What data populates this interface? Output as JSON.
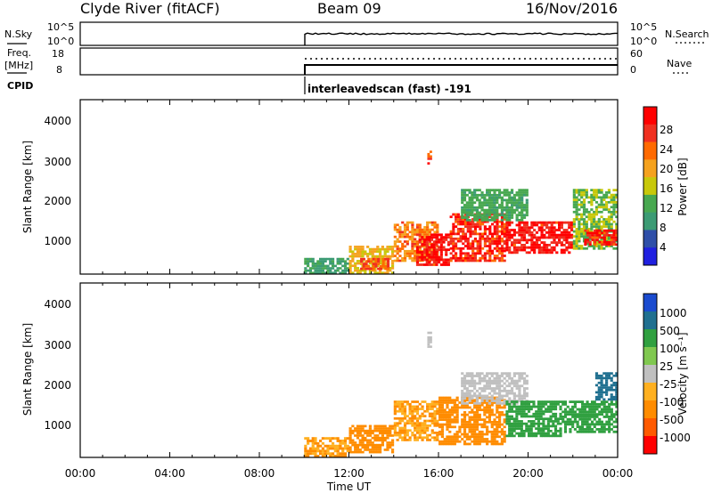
{
  "header": {
    "station": "Clyde River (fitACF)",
    "beam": "Beam 09",
    "date": "16/Nov/2016"
  },
  "colors": {
    "frame": "#000000",
    "power_scale": [
      "#2020e0",
      "#2f4fa8",
      "#3c9b74",
      "#48a850",
      "#c8c80a",
      "#f5a21e",
      "#ff6a00",
      "#f03020",
      "#ff0000"
    ],
    "velocity_scale": [
      "#ff0000",
      "#ff5a00",
      "#ff8c00",
      "#ffb020",
      "#c0c0c0",
      "#80c850",
      "#30a040",
      "#207090",
      "#1a4bcf"
    ]
  },
  "panels": {
    "nsky": {
      "label": "N.Sky",
      "left_ticks": [
        "10^5",
        "10^0"
      ],
      "right_ticks": [
        "10^5",
        "10^0"
      ],
      "right_label": "N.Search"
    },
    "freq": {
      "label_line1": "Freq.",
      "label_line2": "[MHz]",
      "left_ticks": [
        "18",
        "8"
      ],
      "right_ticks": [
        "60",
        "0"
      ],
      "right_label": "Nave"
    },
    "cpid": {
      "label": "CPID",
      "text": "interleavedscan (fast) -191"
    }
  },
  "chart_data": [
    {
      "type": "heatmap",
      "title": "",
      "ylabel": "Slant Range [km]",
      "xlabel": "",
      "xlim": [
        0,
        24
      ],
      "ylim": [
        200,
        4500
      ],
      "y_ticks": [
        "4000",
        "3000",
        "2000",
        "1000"
      ],
      "colorbar": {
        "label": "Power [dB]",
        "ticks": [
          "28",
          "24",
          "20",
          "16",
          "12",
          "8",
          "4"
        ],
        "range": [
          0,
          32
        ]
      },
      "data_start_hour": 10,
      "regions": [
        {
          "t0": 10.0,
          "t1": 12.0,
          "r0": 200,
          "r1": 600,
          "value": 10
        },
        {
          "t0": 12.0,
          "t1": 14.0,
          "r0": 200,
          "r1": 900,
          "value": 18
        },
        {
          "t0": 12.5,
          "t1": 13.8,
          "r0": 300,
          "r1": 600,
          "value": 24
        },
        {
          "t0": 14.0,
          "t1": 16.0,
          "r0": 500,
          "r1": 1500,
          "value": 22
        },
        {
          "t0": 15.0,
          "t1": 16.5,
          "r0": 400,
          "r1": 1200,
          "value": 30
        },
        {
          "t0": 15.5,
          "t1": 15.7,
          "r0": 2900,
          "r1": 3300,
          "value": 26
        },
        {
          "t0": 16.5,
          "t1": 19.0,
          "r0": 500,
          "r1": 1700,
          "value": 28
        },
        {
          "t0": 17.0,
          "t1": 20.0,
          "r0": 1500,
          "r1": 2300,
          "value": 12
        },
        {
          "t0": 19.0,
          "t1": 22.0,
          "r0": 700,
          "r1": 1500,
          "value": 30
        },
        {
          "t0": 22.0,
          "t1": 24.0,
          "r0": 800,
          "r1": 2300,
          "value": 14
        },
        {
          "t0": 22.5,
          "t1": 24.0,
          "r0": 900,
          "r1": 1300,
          "value": 29
        }
      ]
    },
    {
      "type": "heatmap",
      "title": "",
      "ylabel": "Slant Range [km]",
      "xlabel": "Time UT",
      "xlim": [
        0,
        24
      ],
      "ylim": [
        200,
        4500
      ],
      "y_ticks": [
        "4000",
        "3000",
        "2000",
        "1000"
      ],
      "x_ticks": [
        "00:00",
        "04:00",
        "08:00",
        "12:00",
        "16:00",
        "20:00",
        "00:00"
      ],
      "colorbar": {
        "label": "Velocity [m s⁻¹]",
        "ticks": [
          "1000",
          "500",
          "100",
          "25",
          "-25",
          "-100",
          "-500",
          "-1000"
        ]
      },
      "regions": [
        {
          "t0": 10.0,
          "t1": 12.0,
          "r0": 200,
          "r1": 700,
          "value": -100
        },
        {
          "t0": 12.0,
          "t1": 14.0,
          "r0": 300,
          "r1": 1000,
          "value": -300
        },
        {
          "t0": 14.0,
          "t1": 16.0,
          "r0": 600,
          "r1": 1600,
          "value": -100
        },
        {
          "t0": 15.5,
          "t1": 15.7,
          "r0": 2900,
          "r1": 3300,
          "value": 0
        },
        {
          "t0": 16.0,
          "t1": 19.0,
          "r0": 500,
          "r1": 1700,
          "value": -150
        },
        {
          "t0": 17.0,
          "t1": 20.0,
          "r0": 1500,
          "r1": 2300,
          "value": 0
        },
        {
          "t0": 19.0,
          "t1": 21.5,
          "r0": 700,
          "r1": 1600,
          "value": 150
        },
        {
          "t0": 21.5,
          "t1": 24.0,
          "r0": 800,
          "r1": 1600,
          "value": 300
        },
        {
          "t0": 23.0,
          "t1": 24.0,
          "r0": 1600,
          "r1": 2300,
          "value": 700
        }
      ]
    }
  ]
}
